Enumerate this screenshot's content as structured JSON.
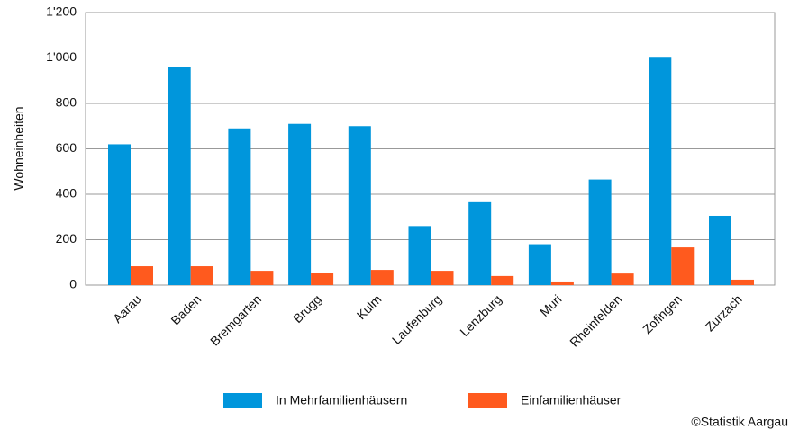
{
  "chart_data": {
    "type": "bar",
    "y_label": "Wohneinheiten",
    "categories": [
      "Aarau",
      "Baden",
      "Bremgarten",
      "Brugg",
      "Kulm",
      "Laufenburg",
      "Lenzburg",
      "Muri",
      "Rheinfelden",
      "Zofingen",
      "Zurzach"
    ],
    "series": [
      {
        "name": "In Mehrfamilienhäusern",
        "color": "#0096dc",
        "values": [
          620,
          960,
          690,
          710,
          700,
          260,
          365,
          180,
          465,
          1005,
          305
        ]
      },
      {
        "name": "Einfamilienhäuser",
        "color": "#ff5a1e",
        "values": [
          83,
          83,
          63,
          55,
          67,
          63,
          40,
          16,
          51,
          166,
          24
        ]
      }
    ],
    "ylim": [
      0,
      1200
    ],
    "yticks": [
      0,
      200,
      400,
      600,
      800,
      {
        "value": 1000,
        "label": "1'000"
      },
      {
        "value": 1200,
        "label": "1'200"
      }
    ],
    "grid": true,
    "legend": "bottom",
    "credit": "©Statistik Aargau"
  }
}
